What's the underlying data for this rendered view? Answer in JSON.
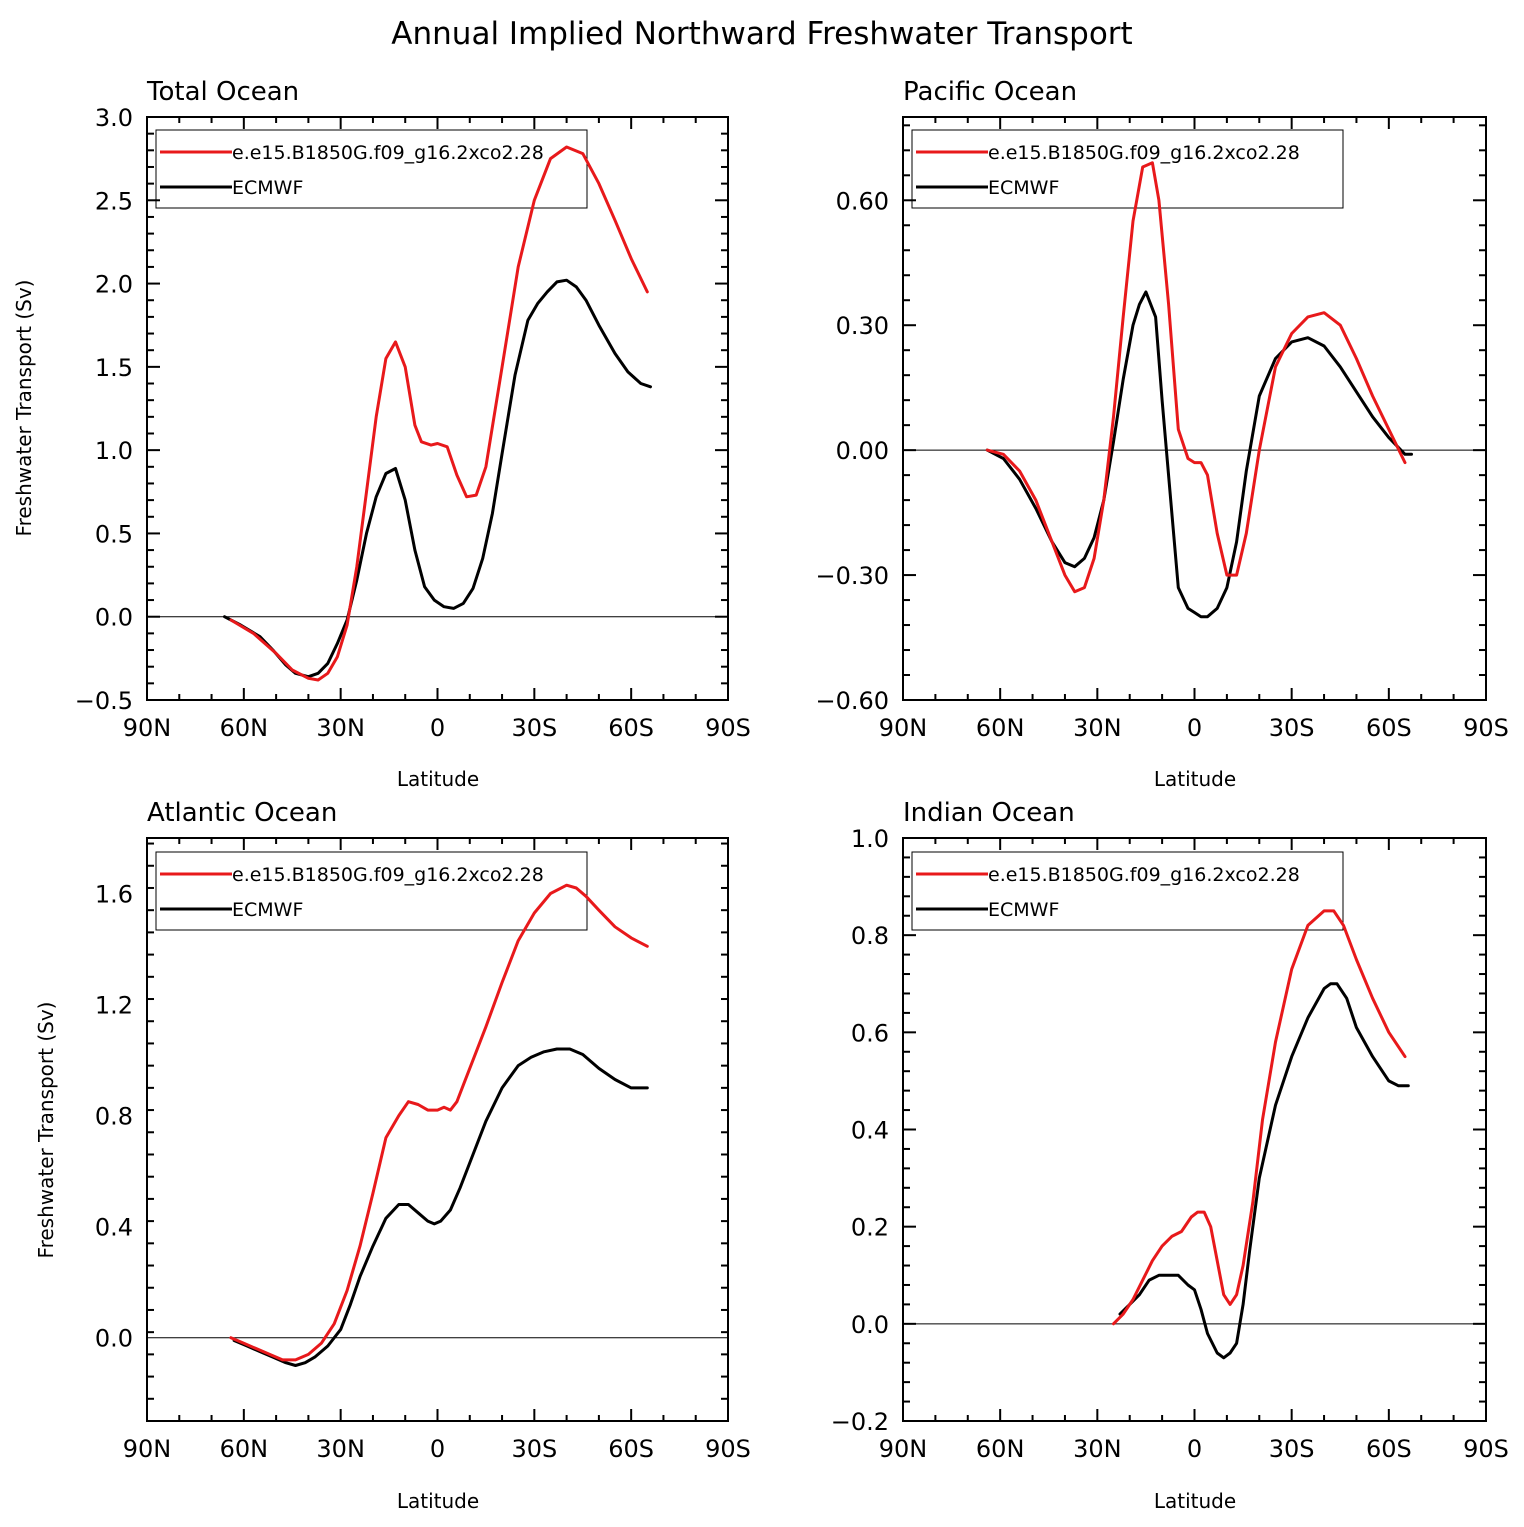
{
  "title": "Annual Implied Northward Freshwater Transport",
  "colors": {
    "model": "#e8191b",
    "obs": "#000000"
  },
  "chart_data": [
    {
      "type": "line",
      "title": "Total Ocean",
      "xlabel": "Latitude",
      "ylabel": "Freshwater Transport (Sv)",
      "xlim": [
        90,
        -90
      ],
      "ylim": [
        -0.5,
        3.0
      ],
      "xticks": [
        90,
        60,
        30,
        0,
        -30,
        -60,
        -90
      ],
      "xtick_labels": [
        "90N",
        "60N",
        "30N",
        "0",
        "30S",
        "60S",
        "90S"
      ],
      "yticks": [
        -0.5,
        0.0,
        0.5,
        1.0,
        1.5,
        2.0,
        2.5,
        3.0
      ],
      "ytick_labels": [
        "-0.5",
        "0.0",
        "0.5",
        "1.0",
        "1.5",
        "2.0",
        "2.5",
        "3.0"
      ],
      "legend": [
        "e.e15.B1850G.f09_g16.2xco2.28",
        "ECMWF"
      ],
      "series": [
        {
          "name": "e.e15.B1850G.f09_g16.2xco2.28",
          "color": "model",
          "x": [
            64,
            57,
            50,
            45,
            40,
            37,
            34,
            31,
            28,
            25,
            22,
            19,
            16,
            13,
            10,
            7,
            5,
            2,
            0,
            -3,
            -6,
            -9,
            -12,
            -15,
            -20,
            -25,
            -30,
            -35,
            -40,
            -45,
            -50,
            -55,
            -60,
            -65
          ],
          "y": [
            -0.02,
            -0.1,
            -0.22,
            -0.32,
            -0.37,
            -0.38,
            -0.34,
            -0.24,
            -0.05,
            0.3,
            0.75,
            1.2,
            1.55,
            1.65,
            1.5,
            1.15,
            1.05,
            1.03,
            1.04,
            1.02,
            0.85,
            0.72,
            0.73,
            0.9,
            1.5,
            2.1,
            2.5,
            2.75,
            2.82,
            2.78,
            2.6,
            2.38,
            2.15,
            1.95
          ]
        },
        {
          "name": "ECMWF",
          "color": "obs",
          "x": [
            66,
            61,
            55,
            51,
            47,
            44,
            40,
            37,
            34,
            31,
            28,
            25,
            22,
            19,
            16,
            13,
            10,
            7,
            4,
            1,
            -2,
            -5,
            -8,
            -11,
            -14,
            -17,
            -20,
            -24,
            -28,
            -31,
            -34,
            -37,
            -40,
            -43,
            -46,
            -50,
            -55,
            -59,
            -63,
            -66
          ],
          "y": [
            0.0,
            -0.05,
            -0.12,
            -0.2,
            -0.29,
            -0.34,
            -0.36,
            -0.34,
            -0.28,
            -0.16,
            -0.02,
            0.22,
            0.5,
            0.72,
            0.86,
            0.89,
            0.7,
            0.4,
            0.18,
            0.1,
            0.06,
            0.05,
            0.08,
            0.17,
            0.35,
            0.62,
            0.98,
            1.45,
            1.78,
            1.88,
            1.95,
            2.01,
            2.02,
            1.98,
            1.9,
            1.75,
            1.58,
            1.47,
            1.4,
            1.38
          ]
        }
      ]
    },
    {
      "type": "line",
      "title": "Pacific Ocean",
      "xlabel": "Latitude",
      "ylabel": "",
      "xlim": [
        90,
        -90
      ],
      "ylim": [
        -0.6,
        0.8
      ],
      "xticks": [
        90,
        60,
        30,
        0,
        -30,
        -60,
        -90
      ],
      "xtick_labels": [
        "90N",
        "60N",
        "30N",
        "0",
        "30S",
        "60S",
        "90S"
      ],
      "yticks": [
        -0.6,
        -0.3,
        0.0,
        0.3,
        0.6
      ],
      "ytick_labels": [
        "-0.60",
        "-0.30",
        "0.00",
        "0.30",
        "0.60"
      ],
      "legend": [
        "e.e15.B1850G.f09_g16.2xco2.28",
        "ECMWF"
      ],
      "series": [
        {
          "name": "e.e15.B1850G.f09_g16.2xco2.28",
          "color": "model",
          "x": [
            64,
            59,
            54,
            49,
            44,
            40,
            37,
            34,
            31,
            28,
            25,
            22,
            19,
            16,
            13,
            11,
            8,
            5,
            2,
            0,
            -2,
            -4,
            -7,
            -10,
            -13,
            -16,
            -20,
            -25,
            -30,
            -35,
            -40,
            -45,
            -50,
            -55,
            -60,
            -65
          ],
          "y": [
            0.0,
            -0.01,
            -0.05,
            -0.12,
            -0.22,
            -0.3,
            -0.34,
            -0.33,
            -0.26,
            -0.12,
            0.08,
            0.32,
            0.55,
            0.68,
            0.69,
            0.6,
            0.35,
            0.05,
            -0.02,
            -0.03,
            -0.03,
            -0.06,
            -0.2,
            -0.3,
            -0.3,
            -0.2,
            0.0,
            0.2,
            0.28,
            0.32,
            0.33,
            0.3,
            0.22,
            0.13,
            0.05,
            -0.03
          ]
        },
        {
          "name": "ECMWF",
          "color": "obs",
          "x": [
            64,
            59,
            54,
            49,
            44,
            40,
            37,
            34,
            31,
            28,
            25,
            22,
            19,
            17,
            15,
            12,
            10,
            7,
            5,
            2,
            0,
            -2,
            -4,
            -7,
            -10,
            -13,
            -16,
            -20,
            -25,
            -30,
            -35,
            -40,
            -45,
            -50,
            -55,
            -60,
            -65,
            -67
          ],
          "y": [
            0.0,
            -0.02,
            -0.07,
            -0.14,
            -0.22,
            -0.27,
            -0.28,
            -0.26,
            -0.21,
            -0.12,
            0.02,
            0.17,
            0.3,
            0.35,
            0.38,
            0.32,
            0.12,
            -0.15,
            -0.33,
            -0.38,
            -0.39,
            -0.4,
            -0.4,
            -0.38,
            -0.33,
            -0.22,
            -0.05,
            0.13,
            0.22,
            0.26,
            0.27,
            0.25,
            0.2,
            0.14,
            0.08,
            0.03,
            -0.01,
            -0.01
          ]
        }
      ]
    },
    {
      "type": "line",
      "title": "Atlantic Ocean",
      "xlabel": "Latitude",
      "ylabel": "Freshwater Transport (Sv)",
      "xlim": [
        90,
        -90
      ],
      "ylim": [
        -0.3,
        1.8
      ],
      "xticks": [
        90,
        60,
        30,
        0,
        -30,
        -60,
        -90
      ],
      "xtick_labels": [
        "90N",
        "60N",
        "30N",
        "0",
        "30S",
        "60S",
        "90S"
      ],
      "yticks": [
        0.0,
        0.4,
        0.8,
        1.2,
        1.6
      ],
      "ytick_labels": [
        "0.0",
        "0.4",
        "0.8",
        "1.2",
        "1.6"
      ],
      "legend": [
        "e.e15.B1850G.f09_g16.2xco2.28",
        "ECMWF"
      ],
      "series": [
        {
          "name": "e.e15.B1850G.f09_g16.2xco2.28",
          "color": "model",
          "x": [
            64,
            60,
            56,
            52,
            48,
            44,
            40,
            36,
            32,
            28,
            24,
            20,
            16,
            12,
            9,
            6,
            3,
            0,
            -2,
            -4,
            -6,
            -8,
            -11,
            -15,
            -20,
            -25,
            -30,
            -35,
            -40,
            -43,
            -46,
            -50,
            -55,
            -60,
            -65
          ],
          "y": [
            0.0,
            -0.02,
            -0.04,
            -0.06,
            -0.08,
            -0.08,
            -0.06,
            -0.02,
            0.05,
            0.17,
            0.33,
            0.52,
            0.72,
            0.8,
            0.85,
            0.84,
            0.82,
            0.82,
            0.83,
            0.82,
            0.85,
            0.91,
            1.0,
            1.12,
            1.28,
            1.43,
            1.53,
            1.6,
            1.63,
            1.62,
            1.59,
            1.54,
            1.48,
            1.44,
            1.41
          ]
        },
        {
          "name": "ECMWF",
          "color": "obs",
          "x": [
            63,
            59,
            55,
            51,
            47,
            44,
            41,
            38,
            34,
            30,
            27,
            24,
            20,
            16,
            12,
            9,
            6,
            3,
            1,
            -1,
            -4,
            -7,
            -11,
            -15,
            -20,
            -25,
            -29,
            -33,
            -37,
            -41,
            -45,
            -50,
            -55,
            -60,
            -65
          ],
          "y": [
            -0.01,
            -0.03,
            -0.05,
            -0.07,
            -0.09,
            -0.1,
            -0.09,
            -0.07,
            -0.03,
            0.03,
            0.12,
            0.22,
            0.33,
            0.43,
            0.48,
            0.48,
            0.45,
            0.42,
            0.41,
            0.42,
            0.46,
            0.54,
            0.66,
            0.78,
            0.9,
            0.98,
            1.01,
            1.03,
            1.04,
            1.04,
            1.02,
            0.97,
            0.93,
            0.9,
            0.9
          ]
        }
      ]
    },
    {
      "type": "line",
      "title": "Indian Ocean",
      "xlabel": "Latitude",
      "ylabel": "",
      "xlim": [
        90,
        -90
      ],
      "ylim": [
        -0.2,
        1.0
      ],
      "xticks": [
        90,
        60,
        30,
        0,
        -30,
        -60,
        -90
      ],
      "xtick_labels": [
        "90N",
        "60N",
        "30N",
        "0",
        "30S",
        "60S",
        "90S"
      ],
      "yticks": [
        -0.2,
        0.0,
        0.2,
        0.4,
        0.6,
        0.8,
        1.0
      ],
      "ytick_labels": [
        "-0.2",
        "0.0",
        "0.2",
        "0.4",
        "0.6",
        "0.8",
        "1.0"
      ],
      "legend": [
        "e.e15.B1850G.f09_g16.2xco2.28",
        "ECMWF"
      ],
      "series": [
        {
          "name": "e.e15.B1850G.f09_g16.2xco2.28",
          "color": "model",
          "x": [
            25,
            22,
            19,
            16,
            13,
            10,
            7,
            4,
            1,
            -1,
            -3,
            -5,
            -7,
            -9,
            -11,
            -13,
            -15,
            -18,
            -21,
            -25,
            -30,
            -35,
            -40,
            -43,
            -46,
            -50,
            -55,
            -60,
            -65
          ],
          "y": [
            0.0,
            0.02,
            0.05,
            0.09,
            0.13,
            0.16,
            0.18,
            0.19,
            0.22,
            0.23,
            0.23,
            0.2,
            0.13,
            0.06,
            0.04,
            0.06,
            0.12,
            0.25,
            0.42,
            0.58,
            0.73,
            0.82,
            0.85,
            0.85,
            0.82,
            0.75,
            0.67,
            0.6,
            0.55
          ]
        },
        {
          "name": "ECMWF",
          "color": "obs",
          "x": [
            23,
            20,
            17,
            14,
            11,
            8,
            5,
            2,
            0,
            -2,
            -4,
            -7,
            -9,
            -11,
            -13,
            -15,
            -17,
            -20,
            -25,
            -30,
            -35,
            -40,
            -42,
            -44,
            -47,
            -50,
            -55,
            -60,
            -63,
            -66
          ],
          "y": [
            0.02,
            0.04,
            0.06,
            0.09,
            0.1,
            0.1,
            0.1,
            0.08,
            0.07,
            0.03,
            -0.02,
            -0.06,
            -0.07,
            -0.06,
            -0.04,
            0.04,
            0.15,
            0.3,
            0.45,
            0.55,
            0.63,
            0.69,
            0.7,
            0.7,
            0.67,
            0.61,
            0.55,
            0.5,
            0.49,
            0.49
          ]
        }
      ]
    }
  ]
}
